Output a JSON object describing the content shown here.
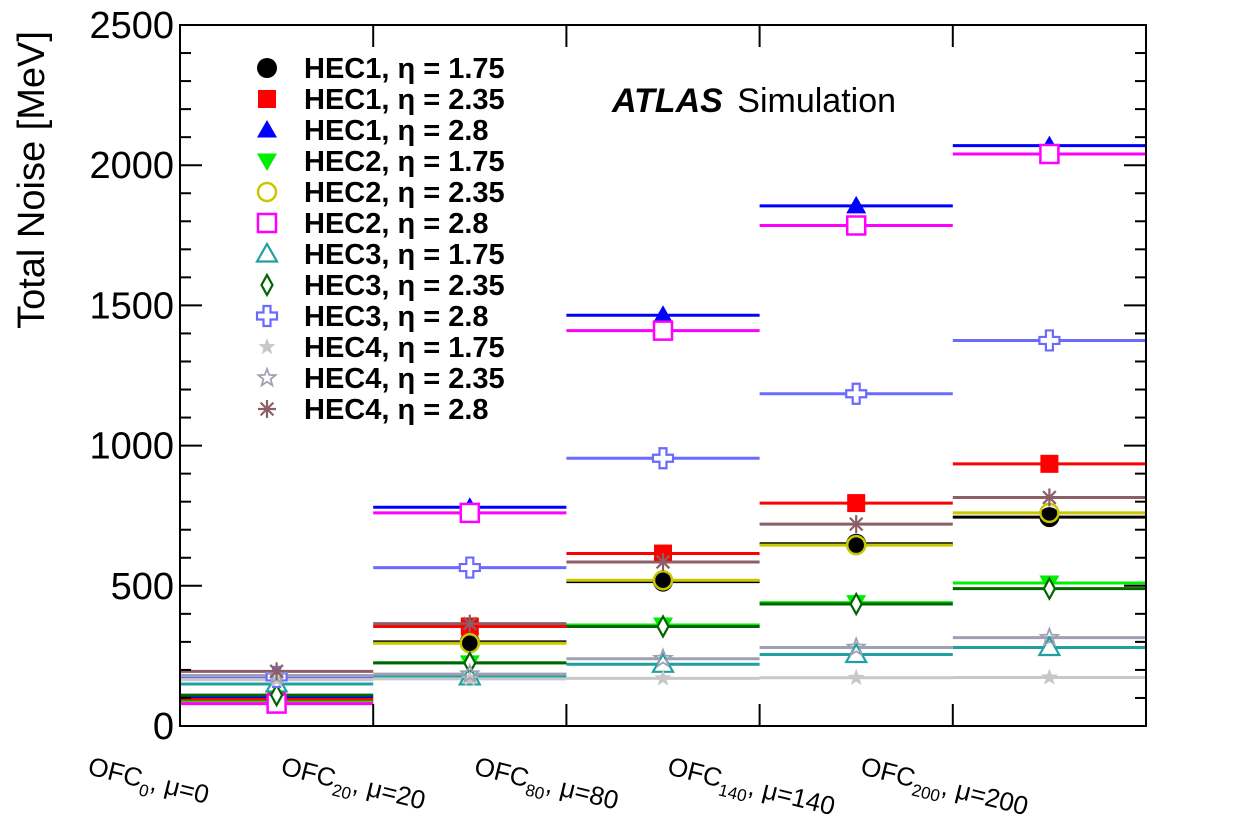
{
  "chart_data": {
    "type": "scatter",
    "title": "",
    "xlabel": "",
    "ylabel": "Total Noise [MeV]",
    "ylim": [
      0,
      2500
    ],
    "yticks": [
      0,
      500,
      1000,
      1500,
      2000,
      2500
    ],
    "annotation": {
      "bold": "ATLAS",
      "regular": "Simulation"
    },
    "categories": [
      {
        "main": "OFC",
        "sub": "0",
        "rest": ", μ=0"
      },
      {
        "main": "OFC",
        "sub": "20",
        "rest": ", μ=20"
      },
      {
        "main": "OFC",
        "sub": "80",
        "rest": ", μ=80"
      },
      {
        "main": "OFC",
        "sub": "140",
        "rest": ", μ=140"
      },
      {
        "main": "OFC",
        "sub": "200",
        "rest": ", μ=200"
      }
    ],
    "legend_location": "top-left",
    "series": [
      {
        "name": "HEC1, η = 1.75",
        "marker": "circle-filled",
        "color": "#000000",
        "line_color": "#000000",
        "values": [
          90,
          300,
          515,
          650,
          745
        ]
      },
      {
        "name": "HEC1, η = 2.35",
        "marker": "square-filled",
        "color": "#ff0000",
        "line_color": "#ff0000",
        "values": [
          95,
          355,
          615,
          795,
          935
        ]
      },
      {
        "name": "HEC1, η = 2.8",
        "marker": "triangle-up-filled",
        "color": "#0000ff",
        "line_color": "#0000ff",
        "values": [
          105,
          780,
          1465,
          1855,
          2070
        ]
      },
      {
        "name": "HEC2, η = 1.75",
        "marker": "triangle-down-filled",
        "color": "#00ee00",
        "line_color": "#00ee00",
        "values": [
          85,
          225,
          360,
          440,
          510
        ]
      },
      {
        "name": "HEC2, η = 2.35",
        "marker": "circle-open",
        "color": "#c8c800",
        "line_color": "#c8c800",
        "values": [
          80,
          295,
          520,
          645,
          760
        ]
      },
      {
        "name": "HEC2, η = 2.8",
        "marker": "square-open",
        "color": "#ff00ff",
        "line_color": "#ff00ff",
        "values": [
          80,
          760,
          1410,
          1785,
          2040
        ]
      },
      {
        "name": "HEC3, η = 1.75",
        "marker": "triangle-up-open",
        "color": "#20a0a0",
        "line_color": "#20a0a0",
        "values": [
          150,
          175,
          220,
          255,
          280
        ]
      },
      {
        "name": "HEC3, η = 2.35",
        "marker": "diamond-open",
        "color": "#006400",
        "line_color": "#006400",
        "values": [
          110,
          225,
          355,
          435,
          490
        ]
      },
      {
        "name": "HEC3, η = 2.8",
        "marker": "cross-open",
        "color": "#6a6aff",
        "line_color": "#6a6aff",
        "values": [
          175,
          565,
          955,
          1185,
          1375
        ]
      },
      {
        "name": "HEC4, η = 1.75",
        "marker": "star-filled",
        "color": "#c8c8c8",
        "line_color": "#c8c8c8",
        "values": [
          165,
          168,
          170,
          172,
          173
        ]
      },
      {
        "name": "HEC4, η = 2.35",
        "marker": "star-open",
        "color": "#a0a0b4",
        "line_color": "#a0a0b4",
        "values": [
          180,
          185,
          240,
          280,
          315
        ]
      },
      {
        "name": "HEC4, η = 2.8",
        "marker": "asterisk",
        "color": "#8b5f65",
        "line_color": "#8b5f65",
        "values": [
          195,
          365,
          585,
          720,
          815
        ]
      }
    ]
  }
}
